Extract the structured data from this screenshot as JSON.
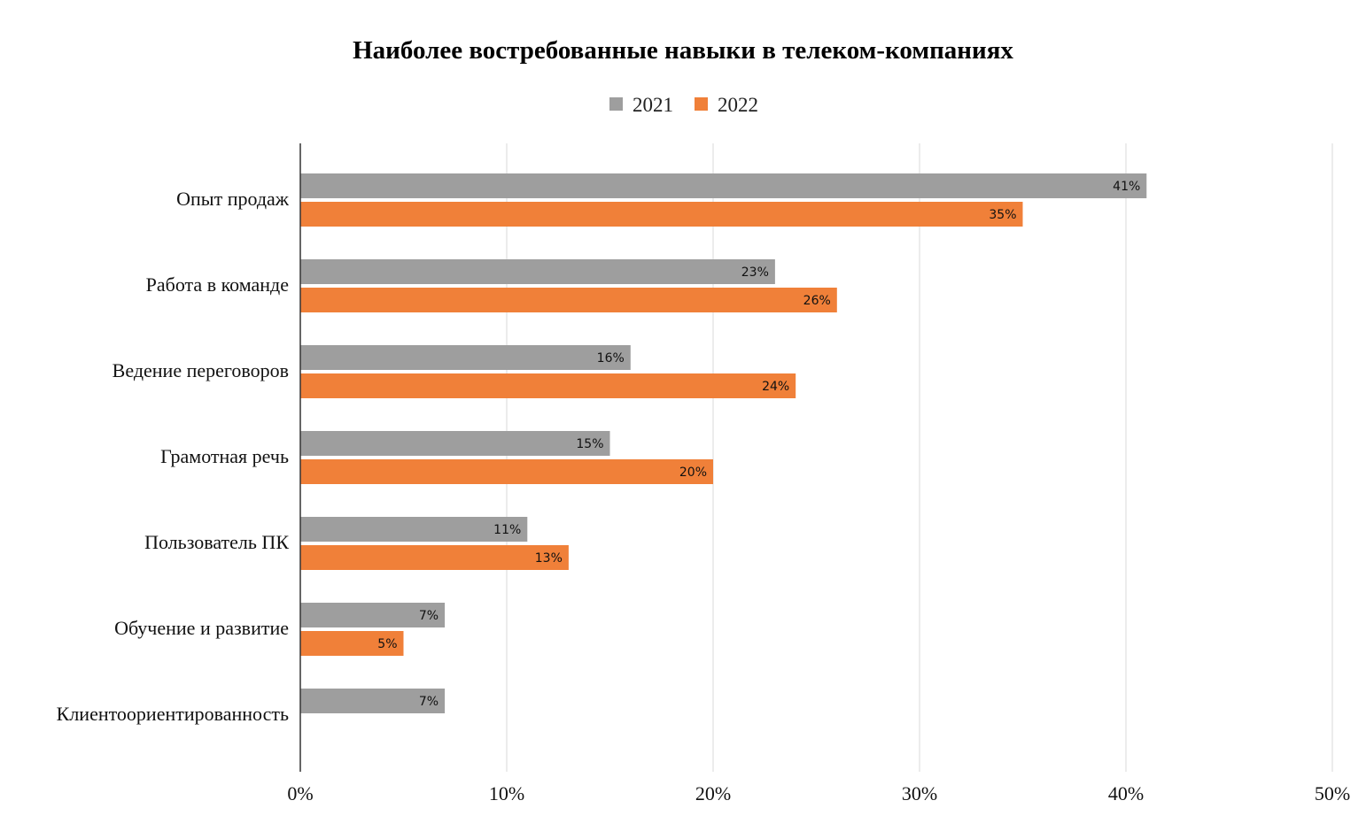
{
  "chart_data": {
    "type": "bar",
    "orientation": "horizontal",
    "title": "Наиболее востребованные навыки в телеком-компаниях",
    "categories": [
      "Опыт продаж",
      "Работа в команде",
      "Ведение переговоров",
      "Грамотная речь",
      "Пользователь ПК",
      "Обучение и развитие",
      "Клиентоориентированность"
    ],
    "series": [
      {
        "name": "2021",
        "color": "#9e9e9e",
        "values": [
          41,
          23,
          16,
          15,
          11,
          7,
          7
        ],
        "labels": [
          "41%",
          "23%",
          "16%",
          "15%",
          "11%",
          "7%",
          "7%"
        ]
      },
      {
        "name": "2022",
        "color": "#f08039",
        "values": [
          35,
          26,
          24,
          20,
          13,
          5,
          null
        ],
        "labels": [
          "35%",
          "26%",
          "24%",
          "20%",
          "13%",
          "5%",
          ""
        ]
      }
    ],
    "xlim": [
      0,
      50
    ],
    "ticks": [
      "0%",
      "10%",
      "20%",
      "30%",
      "40%",
      "50%"
    ],
    "tick_values": [
      0,
      10,
      20,
      30,
      40,
      50
    ],
    "grid": true,
    "legend_position": "top-center"
  }
}
